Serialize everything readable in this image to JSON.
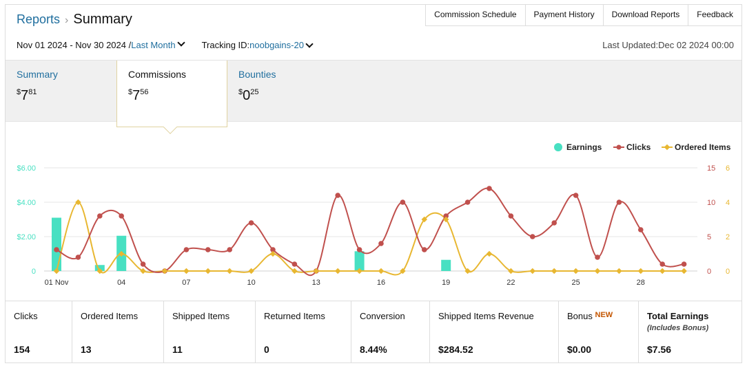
{
  "breadcrumb": {
    "parent": "Reports",
    "separator": "›",
    "current": "Summary"
  },
  "top_links": [
    "Commission Schedule",
    "Payment History",
    "Download Reports",
    "Feedback"
  ],
  "filters": {
    "date_range": "Nov 01 2024 - Nov 30 2024 /",
    "period": "Last Month",
    "tracking_label": "Tracking ID:",
    "tracking_value": "noobgains-20"
  },
  "last_updated": "Last Updated:Dec 02 2024 00:00",
  "tabs": [
    {
      "title": "Summary",
      "currency": "$",
      "int": "7",
      "dec": "81"
    },
    {
      "title": "Commissions",
      "currency": "$",
      "int": "7",
      "dec": "56"
    },
    {
      "title": "Bounties",
      "currency": "$",
      "int": "0",
      "dec": "25"
    }
  ],
  "chart_data": {
    "type": "bar",
    "legend": [
      "Earnings",
      "Clicks",
      "Ordered Items"
    ],
    "legend_placement": "top-right",
    "x": [
      "01 Nov",
      "02",
      "03",
      "04",
      "05",
      "06",
      "07",
      "08",
      "09",
      "10",
      "11",
      "12",
      "13",
      "14",
      "15",
      "16",
      "17",
      "18",
      "19",
      "20",
      "21",
      "22",
      "23",
      "24",
      "25",
      "26",
      "27",
      "28",
      "29",
      "30"
    ],
    "x_tick_labels": [
      "01 Nov",
      "04",
      "07",
      "10",
      "13",
      "16",
      "19",
      "22",
      "25",
      "28"
    ],
    "y_left_ticks": [
      "0",
      "$2.00",
      "$4.00",
      "$6.00"
    ],
    "y_right1_ticks": [
      "0",
      "5",
      "10",
      "15"
    ],
    "y_right2_ticks": [
      "0",
      "2",
      "4",
      "6"
    ],
    "ylim_earnings": [
      0,
      6
    ],
    "ylim_clicks": [
      0,
      15
    ],
    "ylim_ordered": [
      0,
      6
    ],
    "series": [
      {
        "name": "Earnings",
        "kind": "bar",
        "axis": "left",
        "values": [
          3.1,
          0,
          0.35,
          2.05,
          0,
          0,
          0,
          0,
          0,
          0,
          0,
          0,
          0,
          0,
          1.15,
          0,
          0,
          0,
          0.65,
          0,
          0,
          0,
          0,
          0,
          0,
          0,
          0,
          0,
          0,
          0
        ]
      },
      {
        "name": "Clicks",
        "kind": "line",
        "axis": "right1",
        "values": [
          3.1,
          2,
          8,
          8,
          1,
          0,
          3.1,
          3.1,
          3.1,
          7,
          3.1,
          1,
          0,
          11,
          3.1,
          4,
          10,
          3.1,
          8,
          10,
          12,
          8,
          5,
          7,
          11,
          2,
          10,
          6,
          1,
          1
        ]
      },
      {
        "name": "Ordered Items",
        "kind": "line",
        "axis": "right2",
        "values": [
          0,
          4,
          0,
          1,
          0,
          0,
          0,
          0,
          0,
          0,
          1,
          0,
          0,
          0,
          0,
          0,
          0,
          3,
          3,
          0,
          1,
          0,
          0,
          0,
          0,
          0,
          0,
          0,
          0,
          0
        ]
      }
    ],
    "grid": true
  },
  "colors": {
    "earnings": "#48e0c2",
    "clicks": "#c0504d",
    "ordered": "#e8b731",
    "link": "#1f6e9e",
    "new": "#c45500"
  },
  "stats": [
    {
      "label": "Clicks",
      "value": "154"
    },
    {
      "label": "Ordered Items",
      "value": "13"
    },
    {
      "label": "Shipped Items",
      "value": "11"
    },
    {
      "label": "Returned Items",
      "value": "0"
    },
    {
      "label": "Conversion",
      "value": "8.44%"
    },
    {
      "label": "Shipped Items Revenue",
      "value": "$284.52"
    },
    {
      "label": "Bonus",
      "badge": "NEW",
      "value": "$0.00"
    },
    {
      "label": "Total Earnings",
      "sublabel": "(Includes Bonus)",
      "value": "$7.56"
    }
  ]
}
